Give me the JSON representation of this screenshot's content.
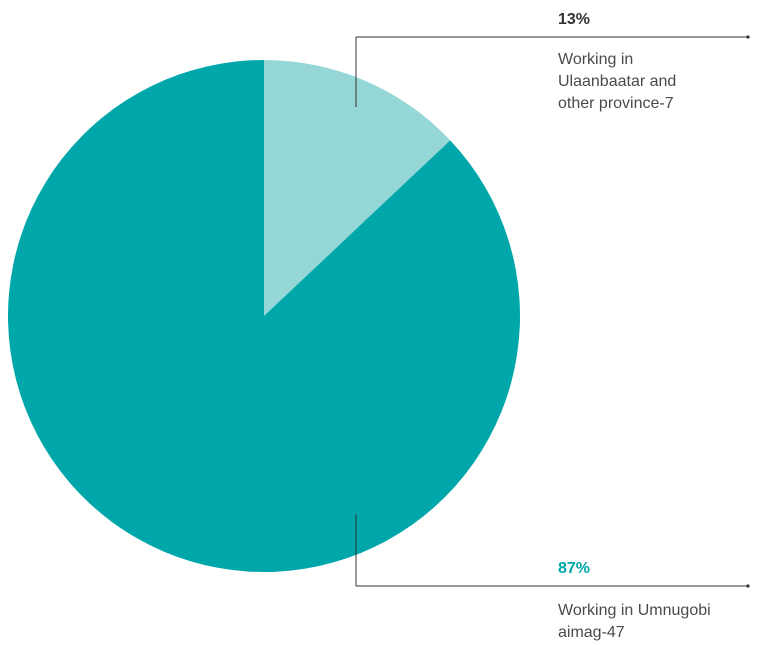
{
  "chart_data": {
    "type": "pie",
    "slices": [
      {
        "label": "Working in Ulaanbaatar and other province-7",
        "label_lines": [
          "Working in",
          "Ulaanbaatar and",
          "other province-7"
        ],
        "value": 7,
        "percent_label": "13%",
        "color": "#95d6d6",
        "percent_color": "#333333"
      },
      {
        "label": "Working in Umnugobi aimag-47",
        "label_lines": [
          "Working in Umnugobi",
          "aimag-47"
        ],
        "value": 47,
        "percent_label": "87%",
        "color": "#00a7aa",
        "percent_color": "#00a7aa"
      }
    ],
    "start_angle_deg": 0,
    "direction": "clockwise",
    "leader_line_color": "#333333"
  }
}
